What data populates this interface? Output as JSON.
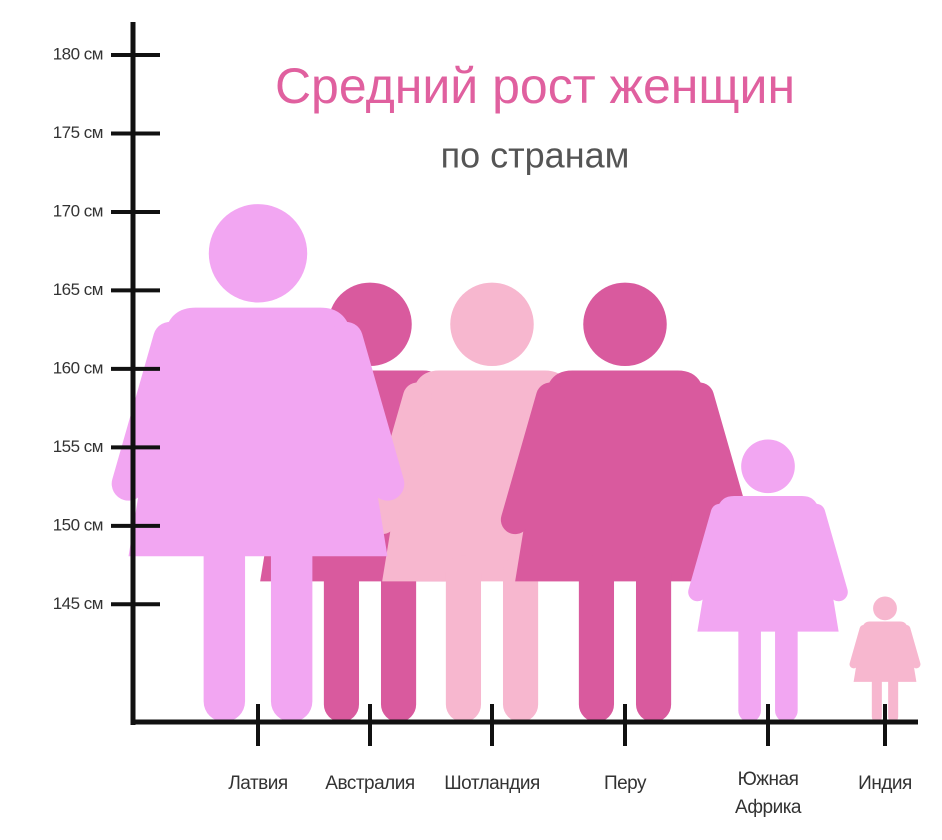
{
  "chart_data": {
    "type": "pictograph",
    "title": "Средний рост женщин",
    "subtitle": "по странам",
    "categories": [
      "Латвия",
      "Австралия",
      "Шотландия",
      "Перу",
      "Южная Африка",
      "Индия"
    ],
    "values": [
      170.5,
      165.5,
      165.5,
      165.5,
      155.5,
      145.5
    ],
    "colors": [
      "#f2a6f2",
      "#d95a9e",
      "#f7b7cf",
      "#d95a9e",
      "#f2a6f2",
      "#f7b7cf"
    ],
    "ylim": [
      137.5,
      180
    ],
    "yticks": [
      {
        "value": 145,
        "label": "145 см"
      },
      {
        "value": 150,
        "label": "150 см"
      },
      {
        "value": 155,
        "label": "155 см"
      },
      {
        "value": 160,
        "label": "160 см"
      },
      {
        "value": 165,
        "label": "165 см"
      },
      {
        "value": 170,
        "label": "170 см"
      },
      {
        "value": 175,
        "label": "175 см"
      },
      {
        "value": 180,
        "label": "180 см"
      }
    ]
  }
}
